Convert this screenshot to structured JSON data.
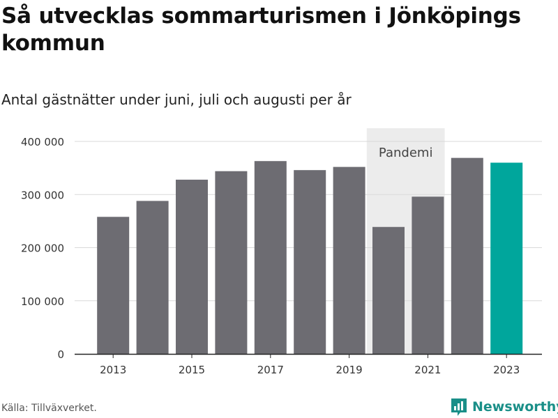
{
  "title": "Så utvecklas sommarturismen i Jönköpings kommun",
  "subtitle": "Antal gästnätter under juni, juli och augusti per år",
  "source": "Källa: Tillväxverket.",
  "brand": {
    "name": "Newsworthy",
    "icon": "newsworthy-logo-icon"
  },
  "colors": {
    "bar": "#6d6c72",
    "highlight": "#00a69c",
    "grid": "#d9d9d9",
    "band": "#ececec",
    "axis": "#222222"
  },
  "chart_data": {
    "type": "bar",
    "title": "Så utvecklas sommarturismen i Jönköpings kommun",
    "subtitle": "Antal gästnätter under juni, juli och augusti per år",
    "xlabel": "",
    "ylabel": "",
    "x": [
      2013,
      2014,
      2015,
      2016,
      2017,
      2018,
      2019,
      2020,
      2021,
      2022,
      2023
    ],
    "values": [
      258000,
      288000,
      328000,
      344000,
      363000,
      346000,
      352000,
      239000,
      296000,
      369000,
      360000
    ],
    "highlight_index": 10,
    "ylim": [
      0,
      400000
    ],
    "yticks": [
      0,
      100000,
      200000,
      300000,
      400000
    ],
    "ytick_labels": [
      "0",
      "100 000",
      "200 000",
      "300 000",
      "400 000"
    ],
    "xticks": [
      2013,
      2015,
      2017,
      2019,
      2021,
      2023
    ],
    "xtick_labels": [
      "2013",
      "2015",
      "2017",
      "2019",
      "2021",
      "2023"
    ],
    "grid": true,
    "annotation": {
      "label": "Pandemi",
      "x_from": 2020,
      "x_to": 2021
    }
  }
}
